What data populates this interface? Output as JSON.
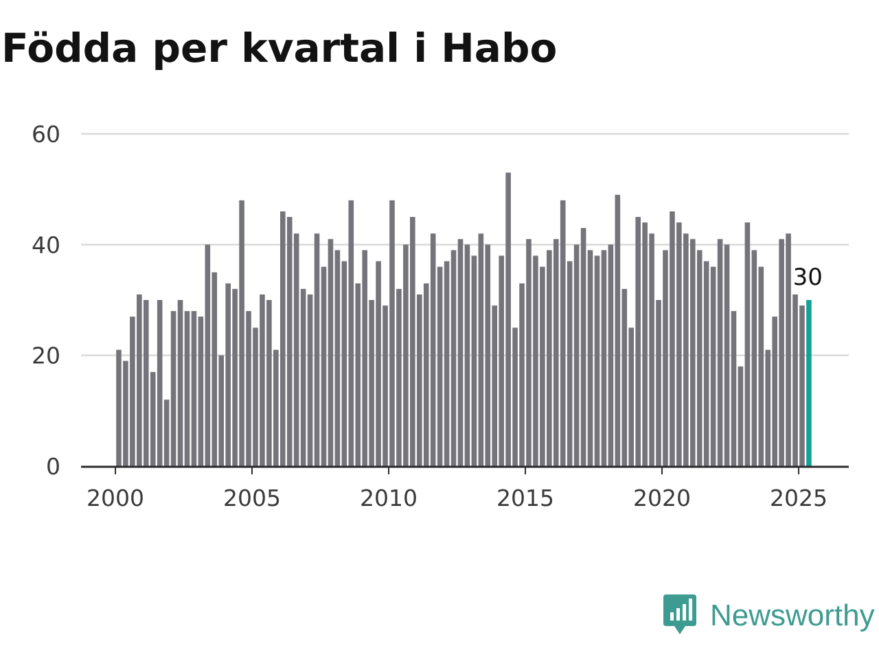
{
  "title": "Födda per kvartal i Habo",
  "brand": {
    "name": "Newsworthy",
    "icon": "newsworthy-logo-icon",
    "color": "#3e9b91"
  },
  "colors": {
    "bar": "#75747a",
    "highlight": "#13a296",
    "grid": "#d9d9d9",
    "axis": "#2b2b2b"
  },
  "chart_data": {
    "type": "bar",
    "title": "Födda per kvartal i Habo",
    "xlabel": "",
    "ylabel": "",
    "ylim": [
      0,
      60
    ],
    "yticks": [
      0,
      20,
      40,
      60
    ],
    "xticks": [
      2000,
      2005,
      2010,
      2015,
      2020,
      2025
    ],
    "xtick_labels": [
      "2000",
      "2005",
      "2010",
      "2015",
      "2020",
      "2025"
    ],
    "grid": true,
    "highlight_last": true,
    "last_value_label": "30",
    "categories": [
      "2000 Q1",
      "2000 Q2",
      "2000 Q3",
      "2000 Q4",
      "2001 Q1",
      "2001 Q2",
      "2001 Q3",
      "2001 Q4",
      "2002 Q1",
      "2002 Q2",
      "2002 Q3",
      "2002 Q4",
      "2003 Q1",
      "2003 Q2",
      "2003 Q3",
      "2003 Q4",
      "2004 Q1",
      "2004 Q2",
      "2004 Q3",
      "2004 Q4",
      "2005 Q1",
      "2005 Q2",
      "2005 Q3",
      "2005 Q4",
      "2006 Q1",
      "2006 Q2",
      "2006 Q3",
      "2006 Q4",
      "2007 Q1",
      "2007 Q2",
      "2007 Q3",
      "2007 Q4",
      "2008 Q1",
      "2008 Q2",
      "2008 Q3",
      "2008 Q4",
      "2009 Q1",
      "2009 Q2",
      "2009 Q3",
      "2009 Q4",
      "2010 Q1",
      "2010 Q2",
      "2010 Q3",
      "2010 Q4",
      "2011 Q1",
      "2011 Q2",
      "2011 Q3",
      "2011 Q4",
      "2012 Q1",
      "2012 Q2",
      "2012 Q3",
      "2012 Q4",
      "2013 Q1",
      "2013 Q2",
      "2013 Q3",
      "2013 Q4",
      "2014 Q1",
      "2014 Q2",
      "2014 Q3",
      "2014 Q4",
      "2015 Q1",
      "2015 Q2",
      "2015 Q3",
      "2015 Q4",
      "2016 Q1",
      "2016 Q2",
      "2016 Q3",
      "2016 Q4",
      "2017 Q1",
      "2017 Q2",
      "2017 Q3",
      "2017 Q4",
      "2018 Q1",
      "2018 Q2",
      "2018 Q3",
      "2018 Q4",
      "2019 Q1",
      "2019 Q2",
      "2019 Q3",
      "2019 Q4",
      "2020 Q1",
      "2020 Q2",
      "2020 Q3",
      "2020 Q4",
      "2021 Q1",
      "2021 Q2",
      "2021 Q3",
      "2021 Q4",
      "2022 Q1",
      "2022 Q2",
      "2022 Q3",
      "2022 Q4",
      "2023 Q1",
      "2023 Q2",
      "2023 Q3",
      "2023 Q4",
      "2024 Q1",
      "2024 Q2",
      "2024 Q3",
      "2024 Q4",
      "2025 Q1",
      "2025 Q2"
    ],
    "values": [
      21,
      19,
      27,
      31,
      30,
      17,
      30,
      12,
      28,
      30,
      28,
      28,
      27,
      40,
      35,
      20,
      33,
      32,
      48,
      28,
      25,
      31,
      30,
      21,
      46,
      45,
      42,
      32,
      31,
      42,
      36,
      41,
      39,
      37,
      48,
      33,
      39,
      30,
      37,
      29,
      48,
      32,
      40,
      45,
      31,
      33,
      42,
      36,
      37,
      39,
      41,
      40,
      38,
      42,
      40,
      29,
      38,
      53,
      25,
      33,
      41,
      38,
      36,
      39,
      41,
      48,
      37,
      40,
      43,
      39,
      38,
      39,
      40,
      49,
      32,
      25,
      45,
      44,
      42,
      30,
      39,
      46,
      44,
      42,
      41,
      39,
      37,
      36,
      41,
      40,
      28,
      18,
      44,
      39,
      36,
      21,
      27,
      41,
      42,
      31,
      29,
      30
    ]
  }
}
